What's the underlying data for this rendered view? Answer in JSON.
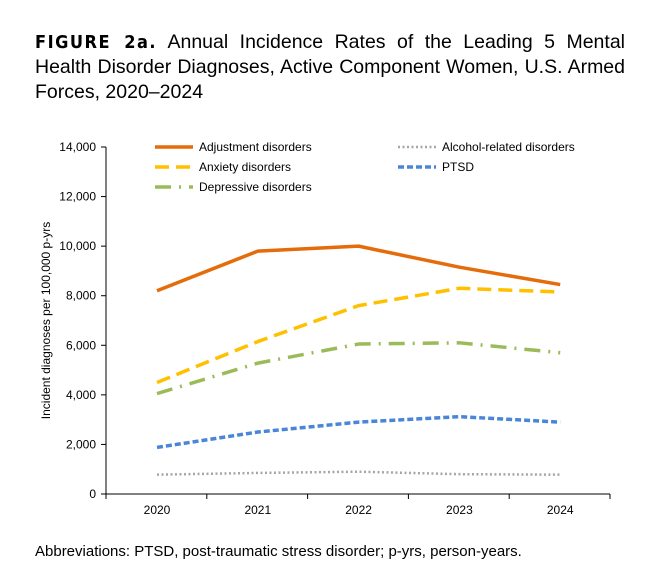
{
  "title_label": "FIGURE 2a.",
  "title_text": "Annual Incidence Rates of the Leading 5 Mental Health Disorder Diagnoses,  Active Component Women, U.S. Armed Forces, 2020–2024",
  "footnote": "Abbreviations: PTSD, post-traumatic stress disorder; p-yrs, person-years.",
  "chart_data": {
    "type": "line",
    "title": "Annual Incidence Rates of the Leading 5 Mental Health Disorder Diagnoses,  Active Component Women, U.S. Armed Forces, 2020–2024",
    "xlabel": "",
    "ylabel": "Incident diagnoses per 100,000 p-yrs",
    "categories": [
      "2020",
      "2021",
      "2022",
      "2023",
      "2024"
    ],
    "ylim": [
      0,
      14000
    ],
    "yticks": [
      0,
      2000,
      4000,
      6000,
      8000,
      10000,
      12000,
      14000
    ],
    "ytick_labels": [
      "0",
      "2,000",
      "4,000",
      "6,000",
      "8,000",
      "10,000",
      "12,000",
      "14,000"
    ],
    "grid": false,
    "legend_placement": "top",
    "series": [
      {
        "name": "Adjustment disorders",
        "color": "#E46C0A",
        "dash": "solid",
        "values": [
          8200,
          9800,
          10000,
          9150,
          8450
        ]
      },
      {
        "name": "Anxiety disorders",
        "color": "#FFC000",
        "dash": "dash",
        "values": [
          4500,
          6150,
          7600,
          8300,
          8150
        ]
      },
      {
        "name": "Depressive disorders",
        "color": "#9BBB59",
        "dash": "dashdot",
        "values": [
          4050,
          5280,
          6050,
          6100,
          5700
        ]
      },
      {
        "name": "Alcohol-related disorders",
        "color": "#A6A6A6",
        "dash": "dot",
        "values": [
          780,
          850,
          900,
          800,
          780
        ]
      },
      {
        "name": "PTSD",
        "color": "#4A86D8",
        "dash": "shortdash",
        "values": [
          1880,
          2500,
          2900,
          3120,
          2900
        ]
      }
    ]
  }
}
